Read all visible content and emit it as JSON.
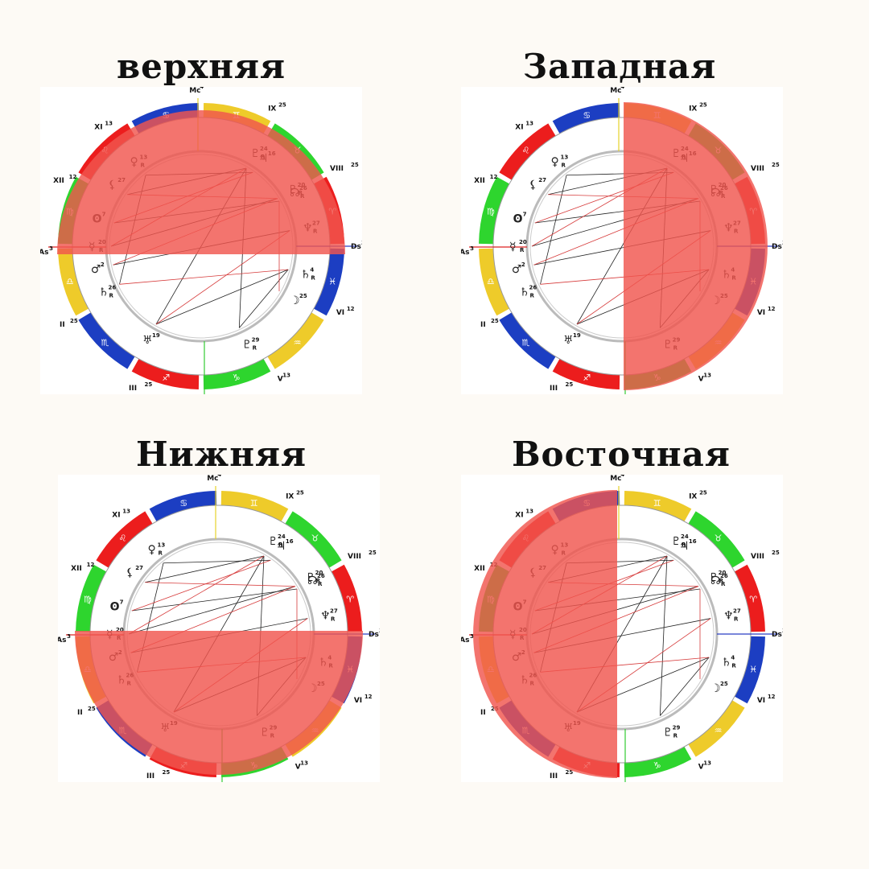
{
  "colors": {
    "background": "#fdfaf5",
    "fire": "#ec1d1d",
    "earth": "#2ed52e",
    "air": "#eecb2a",
    "water": "#1c3ec2",
    "highlight": "#f0564e"
  },
  "charts": [
    {
      "title": "верхняя",
      "highlight": "upper"
    },
    {
      "title": "Западная",
      "highlight": "west"
    },
    {
      "title": "Нижняя",
      "highlight": "lower"
    },
    {
      "title": "Восточная",
      "highlight": "east"
    }
  ],
  "chart_labels": {
    "houses": [
      {
        "label": "Mc",
        "deg": "4"
      },
      {
        "label": "IX",
        "deg": "25"
      },
      {
        "label": "VIII",
        "deg": "25"
      },
      {
        "label": "Ds",
        "deg": "3"
      },
      {
        "label": "VI",
        "deg": "12"
      },
      {
        "label": "V",
        "deg": "13"
      },
      {
        "label": "III",
        "deg": "25"
      },
      {
        "label": "II",
        "deg": "25"
      },
      {
        "label": "As",
        "deg": "3"
      },
      {
        "label": "XII",
        "deg": "12"
      },
      {
        "label": "XI",
        "deg": "13"
      }
    ],
    "planets": [
      {
        "glyph": "♀",
        "deg": "13",
        "retro": "R"
      },
      {
        "glyph": "⚸",
        "deg": "27",
        "retro": ""
      },
      {
        "glyph": "ʘ",
        "deg": "7",
        "retro": ""
      },
      {
        "glyph": "☿",
        "deg": "20",
        "retro": "R"
      },
      {
        "glyph": "♂",
        "deg": "2",
        "retro": ""
      },
      {
        "glyph": "♄",
        "deg": "26",
        "retro": "R"
      },
      {
        "glyph": "♅",
        "deg": "19",
        "retro": ""
      },
      {
        "glyph": "♇",
        "deg": "29",
        "retro": "R"
      },
      {
        "glyph": "☽",
        "deg": "25",
        "retro": ""
      },
      {
        "glyph": "♄",
        "deg": "4",
        "retro": "R"
      },
      {
        "glyph": "♆",
        "deg": "27",
        "retro": "R"
      },
      {
        "glyph": "☊",
        "deg": "26",
        "retro": "R"
      },
      {
        "glyph": "♇",
        "deg": "20",
        "retro": "R"
      },
      {
        "glyph": "♃",
        "deg": "16",
        "retro": ""
      },
      {
        "glyph": "♇",
        "deg": "24",
        "retro": "R"
      }
    ],
    "signs": [
      "♋",
      "♊",
      "♉",
      "♈",
      "♓",
      "♒",
      "♑",
      "♐",
      "♏",
      "♎",
      "♍",
      "♌"
    ]
  }
}
